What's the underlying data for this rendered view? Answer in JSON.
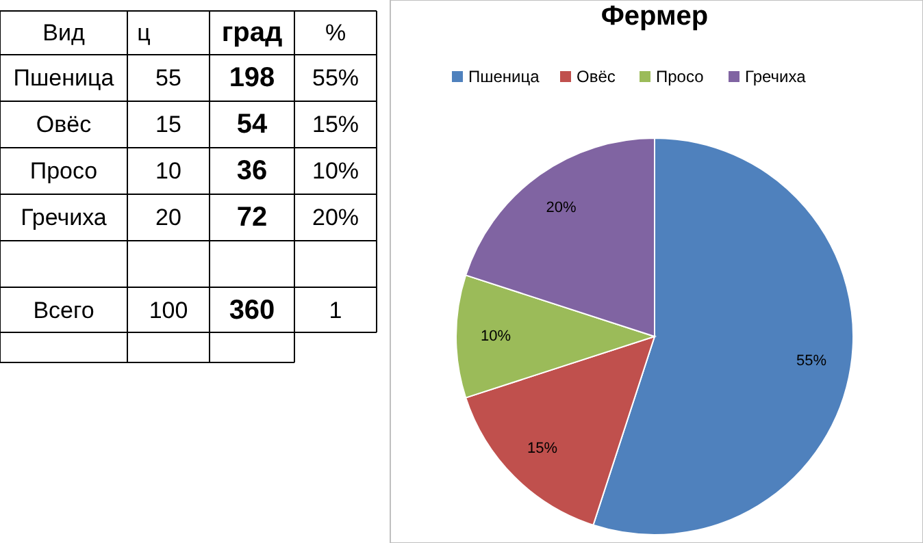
{
  "chart_data": [
    {
      "type": "other",
      "legend_title": "Вид",
      "categories": [
        "Пшеница",
        "Овёс",
        "Просо",
        "Гречиха"
      ],
      "series": [
        {
          "name": "ц",
          "values": [
            55,
            15,
            10,
            20
          ]
        },
        {
          "name": "град",
          "values": [
            198,
            54,
            36,
            72
          ]
        },
        {
          "name": "%",
          "values": [
            55,
            15,
            10,
            20
          ],
          "value_labels": [
            "55%",
            "15%",
            "10%",
            "20%"
          ]
        }
      ],
      "annotations": [
        "Всего"
      ],
      "totals": [
        "100",
        "360",
        "1"
      ],
      "data_labels": true
    },
    {
      "type": "pie",
      "title": "Фермер",
      "categories": [
        "Пшеница",
        "Овёс",
        "Просо",
        "Гречиха"
      ],
      "values": [
        55,
        15,
        10,
        20
      ],
      "colors": [
        "#4f81bd",
        "#c0504d",
        "#9bbb59",
        "#8064a2"
      ],
      "value_labels": [
        "55%",
        "15%",
        "10%",
        "20%"
      ],
      "legend": "top"
    }
  ]
}
